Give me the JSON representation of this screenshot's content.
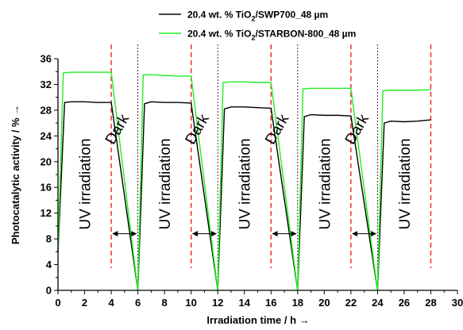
{
  "chart_data": {
    "type": "line",
    "xlabel": "Irradiation time / h →",
    "ylabel": "Photocatalytic activity / % →",
    "xlim": [
      0,
      30
    ],
    "ylim": [
      0,
      36
    ],
    "xticks": [
      0,
      2,
      4,
      6,
      8,
      10,
      12,
      14,
      16,
      18,
      20,
      22,
      24,
      26,
      28,
      30
    ],
    "yticks": [
      0,
      4,
      8,
      12,
      16,
      20,
      24,
      28,
      32,
      36
    ],
    "grid": false,
    "legend_position": "top",
    "series": [
      {
        "name_parts": [
          "20.4 wt. % TiO",
          "2",
          "/SWP700_48 µm"
        ],
        "color": "#000000",
        "points": [
          [
            0,
            6
          ],
          [
            0.5,
            29.2
          ],
          [
            1,
            29.3
          ],
          [
            2,
            29.3
          ],
          [
            3,
            29.2
          ],
          [
            4,
            29.2
          ],
          [
            6,
            0
          ],
          [
            6.5,
            29.0
          ],
          [
            7,
            29.3
          ],
          [
            8,
            29.2
          ],
          [
            9,
            29.2
          ],
          [
            10,
            29.1
          ],
          [
            12,
            0
          ],
          [
            12.5,
            28.2
          ],
          [
            13,
            28.5
          ],
          [
            14,
            28.5
          ],
          [
            15,
            28.4
          ],
          [
            16,
            28.3
          ],
          [
            18,
            0
          ],
          [
            18.5,
            27.0
          ],
          [
            19,
            27.3
          ],
          [
            20,
            27.2
          ],
          [
            21,
            27.2
          ],
          [
            22,
            27.1
          ],
          [
            24,
            0
          ],
          [
            24.5,
            26.0
          ],
          [
            25,
            26.3
          ],
          [
            26,
            26.2
          ],
          [
            27,
            26.3
          ],
          [
            28,
            26.5
          ]
        ]
      },
      {
        "name_parts": [
          "20.4 wt. % TiO",
          "2",
          "/STARBON-800_48 µm"
        ],
        "color": "#22ee22",
        "points": [
          [
            0,
            6
          ],
          [
            0.4,
            33.8
          ],
          [
            1,
            33.9
          ],
          [
            2,
            33.9
          ],
          [
            3,
            33.9
          ],
          [
            4,
            33.9
          ],
          [
            6,
            0
          ],
          [
            6.4,
            33.5
          ],
          [
            7,
            33.5
          ],
          [
            8,
            33.4
          ],
          [
            9,
            33.3
          ],
          [
            10,
            33.3
          ],
          [
            12,
            0
          ],
          [
            12.4,
            32.3
          ],
          [
            13,
            32.4
          ],
          [
            14,
            32.4
          ],
          [
            15,
            32.3
          ],
          [
            16,
            32.3
          ],
          [
            18,
            0
          ],
          [
            18.4,
            31.3
          ],
          [
            19,
            31.4
          ],
          [
            20,
            31.4
          ],
          [
            21,
            31.4
          ],
          [
            22,
            31.4
          ],
          [
            24,
            0
          ],
          [
            24.4,
            31.0
          ],
          [
            25,
            31.1
          ],
          [
            26,
            31.1
          ],
          [
            27,
            31.1
          ],
          [
            28,
            31.2
          ]
        ]
      }
    ],
    "red_dashed_lines_x": [
      4,
      10,
      16,
      22,
      28
    ],
    "black_dotted_lines_x": [
      6,
      12,
      18,
      24
    ],
    "uv_labels": {
      "text": "UV irradiation",
      "x_centers": [
        2,
        8,
        14,
        20,
        26
      ]
    },
    "dark_labels": {
      "text": "Dark",
      "x_centers": [
        5,
        11,
        17,
        23
      ]
    },
    "dark_arrows": [
      [
        4,
        6
      ],
      [
        10,
        12
      ],
      [
        16,
        18
      ],
      [
        22,
        24
      ]
    ],
    "dark_arrow_y": 8.8
  }
}
